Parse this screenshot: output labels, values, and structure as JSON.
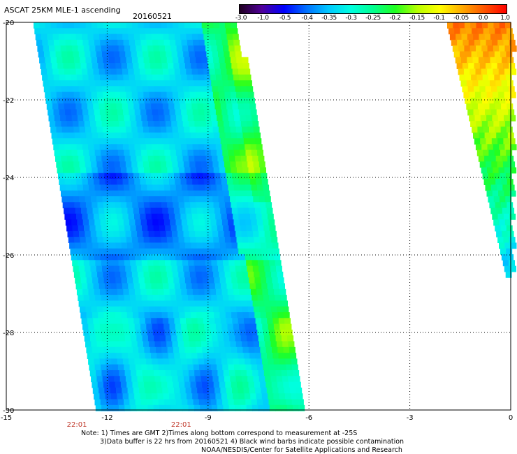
{
  "header": {
    "title": "ASCAT 25KM MLE-1 ascending",
    "date": "20160521"
  },
  "colorbar": {
    "ticks": [
      "-3.0",
      "-1.0",
      "-0.5",
      "-0.4",
      "-0.35",
      "-0.3",
      "-0.25",
      "-0.2",
      "-0.15",
      "-0.1",
      "-0.05",
      "0.0",
      "1.0"
    ],
    "colors": [
      "#200020",
      "#50009a",
      "#0000ff",
      "#0070ff",
      "#00c8ff",
      "#00ffe0",
      "#00ff90",
      "#20ff20",
      "#b8ff00",
      "#ffff00",
      "#ffaa00",
      "#ff5500",
      "#ff0000"
    ]
  },
  "axes": {
    "x_ticks": [
      "-15",
      "-12",
      "-9",
      "-6",
      "-3",
      "0"
    ],
    "y_ticks": [
      "-20",
      "-22",
      "-24",
      "-26",
      "-28",
      "-30"
    ],
    "x_range": [
      -15,
      0
    ],
    "y_range": [
      -30,
      -20
    ]
  },
  "swath_times": [
    "22:01",
    "22:01"
  ],
  "notes": {
    "line1": "Note: 1) Times are GMT 2)Times along bottom correspond to measurement at -25S",
    "line2": "3)Data buffer is 22 hrs from 20160521 4) Black wind barbs indicate possible contamination",
    "line3": "NOAA/NESDIS/Center for Satellite Applications and Research"
  }
}
